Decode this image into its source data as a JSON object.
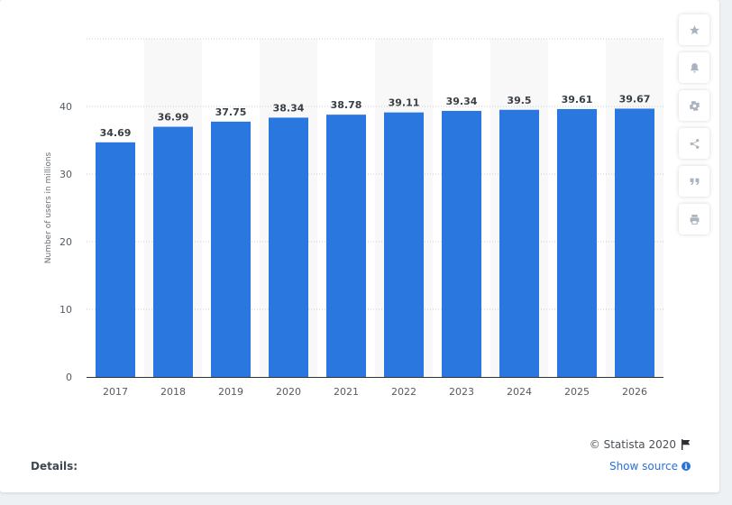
{
  "chart_data": {
    "type": "bar",
    "categories": [
      "2017",
      "2018",
      "2019",
      "2020",
      "2021",
      "2022",
      "2023",
      "2024",
      "2025",
      "2026"
    ],
    "values": [
      34.69,
      36.99,
      37.75,
      38.34,
      38.78,
      39.11,
      39.34,
      39.5,
      39.61,
      39.67
    ],
    "data_labels": [
      "34.69",
      "36.99",
      "37.75",
      "38.34",
      "38.78",
      "39.11",
      "39.34",
      "39.5",
      "39.61",
      "39.67"
    ],
    "ylabel": "Number of users in millions",
    "ylim": [
      0,
      50
    ],
    "yticks": [
      0,
      10,
      20,
      30,
      40
    ],
    "grid": true,
    "bar_color": "#2a77df"
  },
  "footer": {
    "copyright": "© Statista 2020",
    "details_label": "Details:",
    "show_source_label": "Show source",
    "info_glyph": "i"
  },
  "toolbar": {
    "icons": [
      "star-icon",
      "bell-icon",
      "gear-icon",
      "share-icon",
      "quote-icon",
      "print-icon"
    ]
  }
}
